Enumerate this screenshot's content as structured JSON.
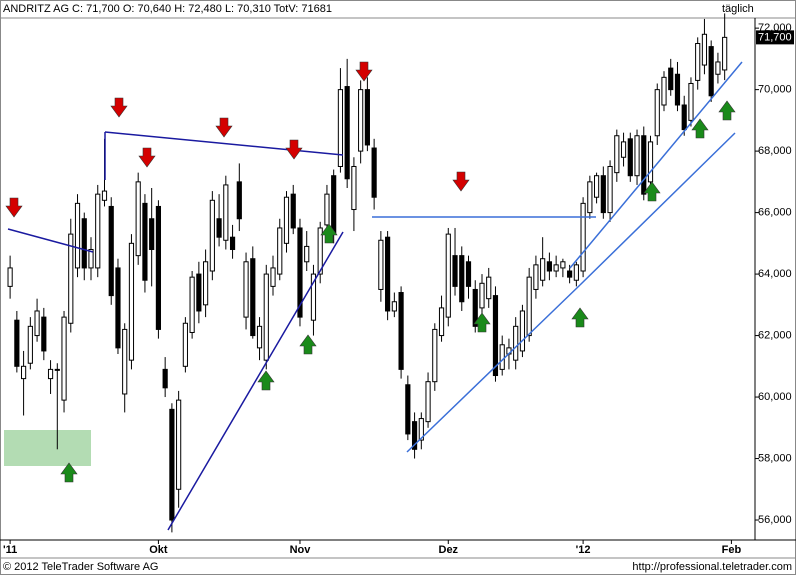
{
  "chart_data": {
    "type": "candlestick",
    "title": "ANDRITZ AG C: 71,700 O: 70,640 H: 72,480 L: 70,310 TotV: 71681",
    "interval_label": "täglich",
    "footer_left": "© 2012 TeleTrader Software AG",
    "footer_right": "http://professional.teletrader.com",
    "last_price": {
      "value": 71.7,
      "label": "71,700"
    },
    "up_color": "#ffffff",
    "down_color": "#000000",
    "xlim": [
      -1.5,
      110.5
    ],
    "xticks": [
      {
        "value": 0,
        "label": "'11"
      },
      {
        "value": 22,
        "label": "Okt"
      },
      {
        "value": 43,
        "label": "Nov"
      },
      {
        "value": 65,
        "label": "Dez"
      },
      {
        "value": 85,
        "label": "'12"
      },
      {
        "value": 107,
        "label": "Feb"
      }
    ],
    "ylim": [
      55.35,
      72.33
    ],
    "yticks": [
      {
        "value": 56,
        "label": "56,000"
      },
      {
        "value": 58,
        "label": "58,000"
      },
      {
        "value": 60,
        "label": "60,000"
      },
      {
        "value": 62,
        "label": "62,000"
      },
      {
        "value": 64,
        "label": "64,000"
      },
      {
        "value": 66,
        "label": "66,000"
      },
      {
        "value": 68,
        "label": "68,000"
      },
      {
        "value": 70,
        "label": "70,000"
      },
      {
        "value": 72,
        "label": "72,000"
      }
    ],
    "open": [
      63.6,
      62.5,
      60.6,
      61.1,
      62.0,
      62.6,
      60.6,
      60.9,
      59.9,
      62.4,
      64.2,
      65.8,
      64.2,
      64.2,
      66.4,
      66.2,
      64.2,
      60.1,
      61.2,
      64.6,
      66.3,
      65.8,
      66.2,
      60.9,
      59.6,
      57.0,
      61.0,
      62.1,
      64.0,
      63.0,
      64.1,
      65.8,
      65.1,
      65.2,
      67.0,
      62.6,
      64.5,
      61.6,
      61.2,
      63.6,
      64.0,
      65.0,
      66.6,
      65.5,
      64.4,
      62.5,
      64.0,
      65.6,
      67.2,
      67.5,
      70.1,
      66.1,
      68.0,
      70.0,
      68.1,
      63.5,
      65.2,
      62.8,
      63.4,
      60.4,
      59.2,
      58.6,
      59.2,
      60.5,
      62.0,
      62.6,
      64.6,
      64.6,
      64.4,
      63.5,
      62.9,
      63.2,
      63.3,
      60.9,
      61.4,
      61.2,
      61.5,
      62.0,
      63.5,
      63.8,
      64.4,
      64.1,
      64.2,
      64.1,
      63.8,
      64.1,
      66.0,
      66.5,
      67.2,
      66.0,
      67.3,
      67.8,
      68.4,
      67.2,
      68.5,
      67.0,
      68.5,
      69.5,
      70.7,
      70.5,
      69.5,
      69.0,
      70.3,
      70.8,
      71.4,
      70.5,
      70.64
    ],
    "high": [
      64.6,
      62.8,
      61.5,
      62.6,
      63.2,
      62.9,
      61.2,
      61.1,
      62.8,
      65.8,
      66.6,
      66.0,
      65.2,
      66.9,
      68.4,
      66.5,
      64.5,
      62.4,
      65.3,
      67.3,
      66.6,
      66.8,
      66.4,
      61.3,
      59.8,
      60.2,
      62.6,
      64.1,
      64.4,
      64.8,
      66.7,
      66.6,
      67.2,
      65.6,
      67.6,
      64.7,
      64.9,
      62.6,
      64.3,
      64.6,
      65.8,
      66.7,
      66.9,
      65.8,
      65.4,
      64.3,
      65.7,
      66.9,
      67.4,
      70.7,
      71.0,
      67.8,
      70.3,
      70.4,
      68.4,
      65.4,
      65.4,
      63.4,
      63.6,
      60.7,
      59.5,
      59.5,
      60.8,
      62.4,
      63.3,
      65.5,
      65.5,
      64.9,
      64.6,
      63.8,
      64.0,
      64.2,
      63.6,
      62.0,
      61.9,
      62.6,
      63.0,
      64.2,
      64.6,
      65.2,
      64.7,
      64.6,
      64.5,
      64.3,
      64.4,
      66.5,
      67.2,
      67.3,
      67.5,
      67.7,
      68.7,
      68.6,
      68.6,
      68.7,
      68.8,
      68.5,
      70.2,
      70.6,
      71.0,
      70.9,
      69.8,
      70.4,
      71.7,
      72.3,
      71.6,
      71.2,
      72.48
    ],
    "low": [
      63.2,
      60.8,
      59.4,
      60.9,
      61.8,
      61.2,
      60.1,
      58.3,
      59.5,
      62.1,
      63.9,
      63.8,
      63.8,
      63.9,
      66.2,
      63.0,
      61.4,
      59.5,
      60.9,
      64.3,
      63.4,
      63.6,
      61.9,
      60.0,
      55.6,
      56.4,
      60.8,
      61.9,
      62.4,
      62.6,
      63.8,
      64.9,
      64.8,
      64.5,
      65.4,
      62.2,
      61.9,
      61.2,
      60.9,
      63.3,
      63.8,
      64.7,
      65.3,
      62.3,
      64.1,
      62.0,
      63.7,
      65.3,
      65.0,
      67.3,
      66.8,
      65.4,
      67.6,
      68.0,
      66.1,
      63.1,
      62.5,
      62.6,
      60.6,
      58.6,
      58.0,
      58.3,
      59.0,
      60.2,
      61.8,
      62.3,
      63.3,
      62.8,
      63.2,
      62.1,
      62.6,
      62.9,
      60.5,
      60.7,
      60.9,
      60.9,
      61.3,
      61.8,
      63.2,
      63.6,
      63.8,
      63.9,
      63.9,
      63.7,
      63.6,
      63.9,
      65.8,
      66.3,
      65.8,
      65.7,
      67.0,
      67.5,
      67.0,
      66.9,
      66.4,
      66.7,
      68.2,
      69.3,
      69.8,
      69.3,
      68.5,
      68.8,
      70.0,
      70.5,
      69.6,
      70.2,
      70.31
    ],
    "close": [
      64.2,
      61.0,
      61.0,
      62.3,
      62.8,
      61.5,
      60.9,
      60.9,
      62.6,
      65.3,
      66.3,
      64.2,
      64.8,
      66.6,
      66.7,
      63.3,
      61.6,
      62.2,
      65.0,
      67.0,
      63.8,
      64.8,
      62.2,
      60.3,
      56.0,
      59.9,
      62.4,
      63.9,
      62.8,
      64.4,
      66.4,
      65.2,
      66.9,
      64.8,
      65.8,
      64.4,
      62.0,
      62.3,
      64.0,
      64.2,
      65.5,
      66.5,
      65.5,
      62.6,
      64.9,
      64.0,
      65.5,
      66.6,
      65.3,
      70.0,
      67.1,
      67.5,
      70.0,
      68.2,
      66.5,
      65.1,
      62.8,
      63.1,
      60.9,
      58.8,
      58.3,
      59.3,
      60.5,
      62.2,
      62.9,
      65.3,
      63.6,
      63.1,
      63.6,
      62.3,
      63.7,
      63.9,
      60.7,
      61.7,
      61.6,
      62.3,
      62.8,
      63.9,
      64.3,
      64.5,
      64.1,
      64.3,
      64.4,
      63.9,
      64.3,
      66.3,
      67.0,
      67.2,
      66.0,
      67.5,
      68.5,
      68.3,
      67.2,
      68.5,
      66.6,
      68.3,
      70.0,
      70.4,
      70.0,
      69.5,
      68.7,
      70.2,
      71.5,
      71.8,
      69.8,
      70.9,
      71.7
    ]
  }
}
